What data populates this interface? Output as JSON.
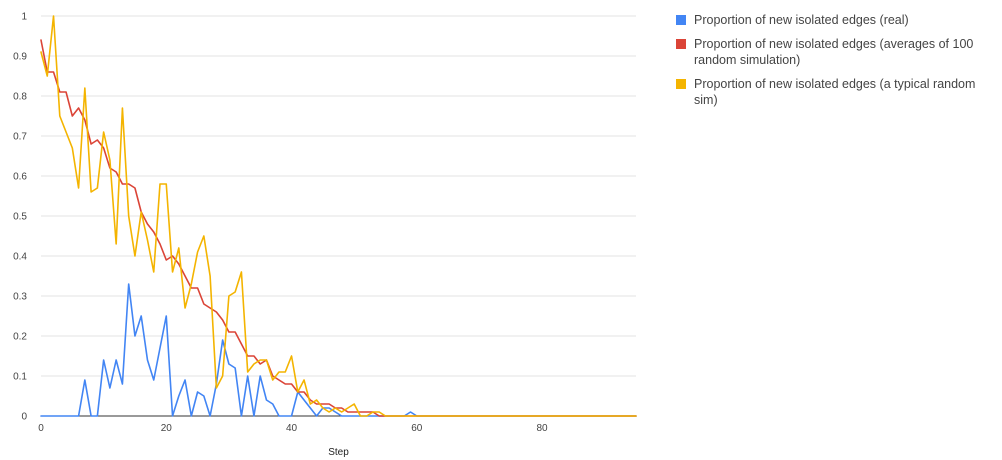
{
  "chart_data": {
    "type": "line",
    "title": "",
    "xlabel": "Step",
    "ylabel": "",
    "xlim": [
      0,
      95
    ],
    "ylim": [
      0,
      1
    ],
    "grid": true,
    "legend_position": "right",
    "x_ticks": [
      0,
      20,
      40,
      60,
      80
    ],
    "y_ticks": [
      0,
      0.1,
      0.2,
      0.3,
      0.4,
      0.5,
      0.6,
      0.7,
      0.8,
      0.9,
      1
    ],
    "x_tick_labels": [
      "0",
      "20",
      "40",
      "60",
      "80"
    ],
    "y_tick_labels": [
      "0",
      "0.1",
      "0.2",
      "0.3",
      "0.4",
      "0.5",
      "0.6",
      "0.7",
      "0.8",
      "0.9",
      "1"
    ],
    "series": [
      {
        "name": "Proportion of new isolated edges (real)",
        "color": "#4285f4",
        "x": [
          0,
          1,
          2,
          3,
          4,
          5,
          6,
          7,
          8,
          9,
          10,
          11,
          12,
          13,
          14,
          15,
          16,
          17,
          18,
          19,
          20,
          21,
          22,
          23,
          24,
          25,
          26,
          27,
          28,
          29,
          30,
          31,
          32,
          33,
          34,
          35,
          36,
          37,
          38,
          39,
          40,
          41,
          42,
          43,
          44,
          45,
          46,
          47,
          48,
          49,
          50,
          51,
          52,
          53,
          54,
          55,
          56,
          57,
          58,
          59,
          60,
          61,
          62,
          63,
          64,
          65,
          66,
          67,
          68,
          69,
          70,
          71,
          72,
          73,
          74,
          75,
          76,
          77,
          78,
          79,
          80,
          81,
          82,
          83,
          84,
          85,
          86,
          87,
          88,
          89,
          90,
          91,
          92,
          93,
          94,
          95
        ],
        "y": [
          0,
          0,
          0,
          0,
          0,
          0,
          0,
          0.09,
          0,
          0,
          0.14,
          0.07,
          0.14,
          0.08,
          0.33,
          0.2,
          0.25,
          0.14,
          0.09,
          0.17,
          0.25,
          0,
          0.05,
          0.09,
          0,
          0.06,
          0.05,
          0,
          0.08,
          0.19,
          0.13,
          0.12,
          0,
          0.1,
          0,
          0.1,
          0.04,
          0.03,
          0,
          0,
          0,
          0.06,
          0.04,
          0.02,
          0,
          0.02,
          0.02,
          0.01,
          0,
          0,
          0,
          0,
          0,
          0,
          0,
          0,
          0,
          0,
          0,
          0.01,
          0,
          0,
          0,
          0,
          0,
          0,
          0,
          0,
          0,
          0,
          0,
          0,
          0,
          0,
          0,
          0,
          0,
          0,
          0,
          0,
          0,
          0,
          0,
          0,
          0,
          0,
          0,
          0,
          0,
          0,
          0,
          0,
          0,
          0,
          0,
          0
        ]
      },
      {
        "name": "Proportion of new isolated edges (averages of 100 random simulation)",
        "color": "#db4437",
        "x": [
          0,
          1,
          2,
          3,
          4,
          5,
          6,
          7,
          8,
          9,
          10,
          11,
          12,
          13,
          14,
          15,
          16,
          17,
          18,
          19,
          20,
          21,
          22,
          23,
          24,
          25,
          26,
          27,
          28,
          29,
          30,
          31,
          32,
          33,
          34,
          35,
          36,
          37,
          38,
          39,
          40,
          41,
          42,
          43,
          44,
          45,
          46,
          47,
          48,
          49,
          50,
          51,
          52,
          53,
          54,
          55,
          56,
          57,
          58,
          59,
          60,
          61,
          62,
          63,
          64,
          65,
          66,
          67,
          68,
          69,
          70,
          71,
          72,
          73,
          74,
          75,
          76,
          77,
          78,
          79,
          80,
          81,
          82,
          83,
          84,
          85,
          86,
          87,
          88,
          89,
          90,
          91,
          92,
          93,
          94,
          95
        ],
        "y": [
          0.94,
          0.86,
          0.86,
          0.81,
          0.81,
          0.75,
          0.77,
          0.74,
          0.68,
          0.69,
          0.67,
          0.62,
          0.61,
          0.58,
          0.58,
          0.57,
          0.51,
          0.48,
          0.46,
          0.43,
          0.39,
          0.4,
          0.38,
          0.35,
          0.32,
          0.32,
          0.28,
          0.27,
          0.26,
          0.24,
          0.21,
          0.21,
          0.18,
          0.15,
          0.15,
          0.13,
          0.14,
          0.1,
          0.09,
          0.08,
          0.08,
          0.06,
          0.06,
          0.04,
          0.03,
          0.03,
          0.03,
          0.02,
          0.02,
          0.01,
          0.01,
          0.01,
          0.01,
          0.01,
          0,
          0,
          0,
          0,
          0,
          0,
          0,
          0,
          0,
          0,
          0,
          0,
          0,
          0,
          0,
          0,
          0,
          0,
          0,
          0,
          0,
          0,
          0,
          0,
          0,
          0,
          0,
          0,
          0,
          0,
          0,
          0,
          0,
          0,
          0,
          0,
          0,
          0,
          0,
          0,
          0,
          0
        ]
      },
      {
        "name": "Proportion of new isolated edges (a typical random sim)",
        "color": "#f4b400",
        "x": [
          0,
          1,
          2,
          3,
          4,
          5,
          6,
          7,
          8,
          9,
          10,
          11,
          12,
          13,
          14,
          15,
          16,
          17,
          18,
          19,
          20,
          21,
          22,
          23,
          24,
          25,
          26,
          27,
          28,
          29,
          30,
          31,
          32,
          33,
          34,
          35,
          36,
          37,
          38,
          39,
          40,
          41,
          42,
          43,
          44,
          45,
          46,
          47,
          48,
          49,
          50,
          51,
          52,
          53,
          54,
          55,
          56,
          57,
          58,
          59,
          60,
          61,
          62,
          63,
          64,
          65,
          66,
          67,
          68,
          69,
          70,
          71,
          72,
          73,
          74,
          75,
          76,
          77,
          78,
          79,
          80,
          81,
          82,
          83,
          84,
          85,
          86,
          87,
          88,
          89,
          90,
          91,
          92,
          93,
          94,
          95
        ],
        "y": [
          0.91,
          0.85,
          1.0,
          0.75,
          0.71,
          0.67,
          0.57,
          0.82,
          0.56,
          0.57,
          0.71,
          0.64,
          0.43,
          0.77,
          0.5,
          0.4,
          0.51,
          0.44,
          0.36,
          0.58,
          0.58,
          0.36,
          0.42,
          0.27,
          0.33,
          0.41,
          0.45,
          0.35,
          0.07,
          0.1,
          0.3,
          0.31,
          0.36,
          0.11,
          0.13,
          0.14,
          0.14,
          0.09,
          0.11,
          0.11,
          0.15,
          0.06,
          0.09,
          0.03,
          0.04,
          0.02,
          0.01,
          0.02,
          0.01,
          0.02,
          0.03,
          0,
          0,
          0.01,
          0.01,
          0,
          0,
          0,
          0,
          0,
          0,
          0,
          0,
          0,
          0,
          0,
          0,
          0,
          0,
          0,
          0,
          0,
          0,
          0,
          0,
          0,
          0,
          0,
          0,
          0,
          0,
          0,
          0,
          0,
          0,
          0,
          0,
          0,
          0,
          0,
          0,
          0,
          0,
          0,
          0,
          0
        ]
      }
    ]
  }
}
